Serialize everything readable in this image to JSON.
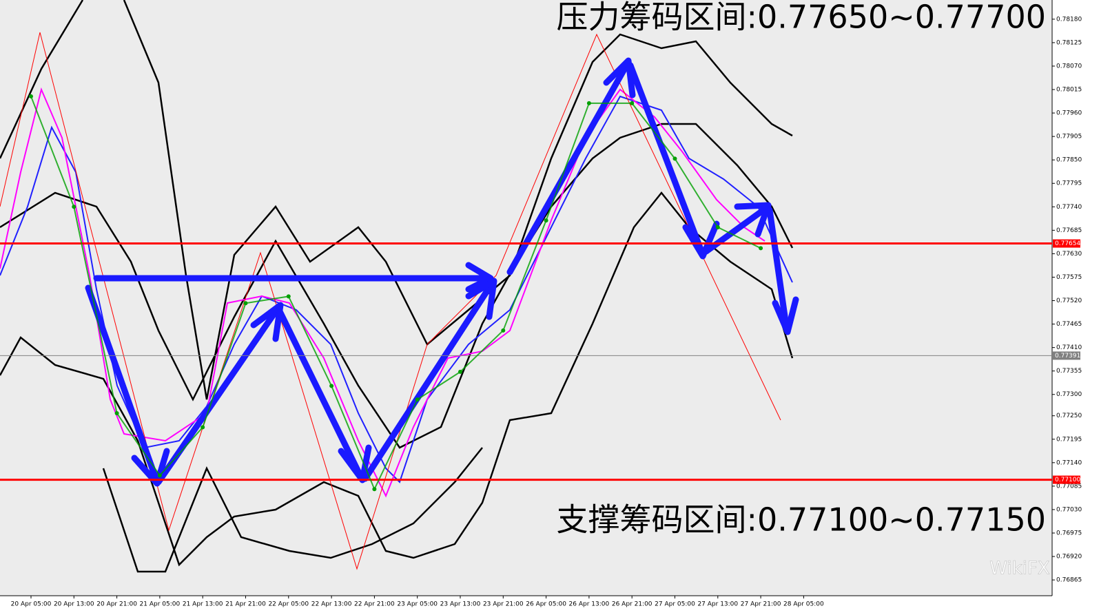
{
  "chart_data": {
    "type": "line",
    "annotations": [
      "压力筹码区间:0.77650~0.77700",
      "支撑筹码区间:0.77100~0.77150"
    ],
    "watermark": "WikiFX",
    "categories": [
      "20 Apr 05:00",
      "20 Apr 13:00",
      "20 Apr 21:00",
      "21 Apr 05:00",
      "21 Apr 13:00",
      "21 Apr 21:00",
      "22 Apr 05:00",
      "22 Apr 13:00",
      "22 Apr 21:00",
      "23 Apr 05:00",
      "23 Apr 13:00",
      "23 Apr 21:00",
      "26 Apr 05:00",
      "26 Apr 13:00",
      "26 Apr 21:00",
      "27 Apr 05:00",
      "27 Apr 13:00",
      "27 Apr 21:00",
      "28 Apr 05:00"
    ],
    "series": [
      {
        "color": "#00a000",
        "values": [
          0.77999,
          0.7774,
          0.77256,
          0.7711,
          0.77223,
          0.77514,
          0.7753,
          0.7732,
          0.77078,
          0.77288,
          0.77353,
          0.7745,
          0.77708,
          0.77983,
          0.77983,
          0.77853,
          0.77692,
          0.77643,
          null
        ]
      }
    ],
    "ylim": [
      0.76828,
      0.78225
    ],
    "yticks": [
      {
        "value": 0.7818,
        "label": "0.78180"
      },
      0.78125,
      {
        "value": 0.7807,
        "label": "0.78070"
      },
      0.78015,
      {
        "value": 0.7796,
        "label": "0.77960"
      },
      0.77905,
      {
        "value": 0.7785,
        "label": "0.77850"
      },
      0.77795,
      {
        "value": 0.7774,
        "label": "0.77740"
      },
      0.77685,
      {
        "value": 0.7763,
        "label": "0.77630"
      },
      0.77575,
      {
        "value": 0.7752,
        "label": "0.77520"
      },
      0.77465,
      {
        "value": 0.7741,
        "label": "0.77410"
      },
      0.77355,
      {
        "value": 0.773,
        "label": "0.77300"
      },
      {
        "value": 0.7725,
        "label": "0.77250"
      },
      0.77195,
      {
        "value": 0.7714,
        "label": "0.77140"
      },
      0.77085,
      {
        "value": 0.7703,
        "label": "0.77030"
      },
      0.76975,
      {
        "value": 0.7692,
        "label": "0.76920"
      },
      0.76865
    ],
    "hlines": [
      {
        "value": 0.77654,
        "color": "#ff0000"
      },
      {
        "value": 0.771,
        "label": "0.77100",
        "color": "#ff0000"
      },
      {
        "value": 0.77391,
        "color": "#808080"
      }
    ]
  }
}
